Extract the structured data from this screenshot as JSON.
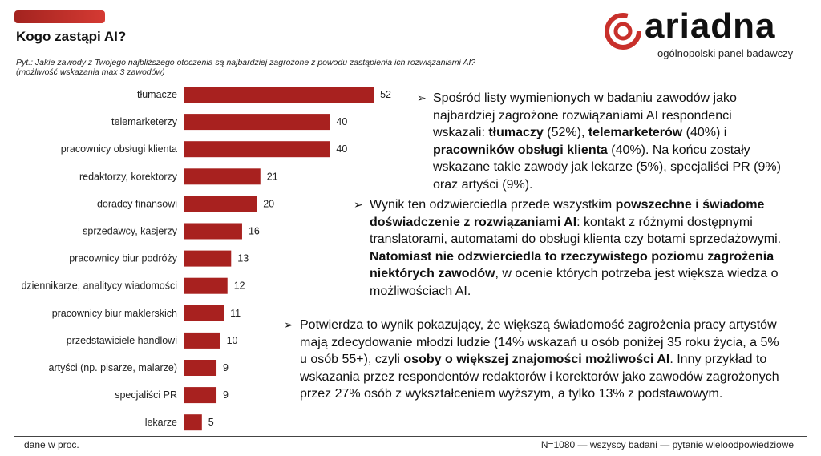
{
  "header": {
    "title": "Kogo zastąpi AI?",
    "question_line1": "Pyt.: Jakie zawody z Twojego najbliższego otoczenia są najbardziej zagrożone z powodu zastąpienia ich rozwiązaniami AI?",
    "question_line2": "(możliwość wskazania max 3 zawodów)"
  },
  "logo": {
    "word": "ariadna",
    "subtitle": "ogólnopolski panel badawczy"
  },
  "colors": {
    "bar": "#a8211f",
    "accent": "#c8302b"
  },
  "chart_data": {
    "type": "bar",
    "orientation": "horizontal",
    "unit": "%",
    "xlim": [
      0,
      60
    ],
    "categories": [
      "tłumacze",
      "telemarketerzy",
      "pracownicy obsługi klienta",
      "redaktorzy, korektorzy",
      "doradcy finansowi",
      "sprzedawcy, kasjerzy",
      "pracownicy biur podróży",
      "dziennikarze, analitycy wiadomości",
      "pracownicy biur maklerskich",
      "przedstawiciele handlowi",
      "artyści (np. pisarze, malarze)",
      "specjaliści PR",
      "lekarze"
    ],
    "values": [
      52,
      40,
      40,
      21,
      20,
      16,
      13,
      12,
      11,
      10,
      9,
      9,
      5
    ]
  },
  "paragraphs": [
    {
      "parts": [
        [
          "Spośród listy wymienionych w badaniu zawodów jako najbardziej zagrożone rozwiązaniami AI respondenci wskazali: ",
          false
        ],
        [
          "tłumaczy",
          true
        ],
        [
          " (52%), ",
          false
        ],
        [
          "telemarketerów",
          true
        ],
        [
          " (40%) i ",
          false
        ],
        [
          "pracowników obsługi klienta",
          true
        ],
        [
          " (40%). Na końcu zostały wskazane takie zawody jak lekarze (5%), specjaliści PR (9%) oraz artyści (9%).",
          false
        ]
      ]
    },
    {
      "parts": [
        [
          "Wynik ten odzwierciedla przede wszystkim ",
          false
        ],
        [
          "powszechne i świadome doświadczenie z rozwiązaniami AI",
          true
        ],
        [
          ": kontakt z różnymi dostępnymi translatorami, automatami do obsługi klienta czy botami sprzedażowymi. ",
          false
        ],
        [
          "Natomiast nie odzwierciedla to rzeczywistego poziomu zagrożenia niektórych zawodów",
          true
        ],
        [
          ", w ocenie których potrzeba jest większa wiedza o możliwościach AI.",
          false
        ]
      ]
    },
    {
      "parts": [
        [
          "Potwierdza to wynik pokazujący, że większą świadomość zagrożenia pracy artystów mają zdecydowanie młodzi ludzie (14% wskazań u osób poniżej 35 roku życia, a 5% u osób 55+), czyli ",
          false
        ],
        [
          "osoby o większej znajomości możliwości AI",
          true
        ],
        [
          ". Inny przykład to wskazania przez respondentów redaktorów i korektorów jako zawodów zagrożonych przez 27% osób z wykształceniem wyższym, a tylko 13% z podstawowym.",
          false
        ]
      ]
    }
  ],
  "footer": {
    "left": "dane w proc.",
    "right": "N=1080 — wszyscy badani — pytanie wieloodpowiedziowe"
  }
}
